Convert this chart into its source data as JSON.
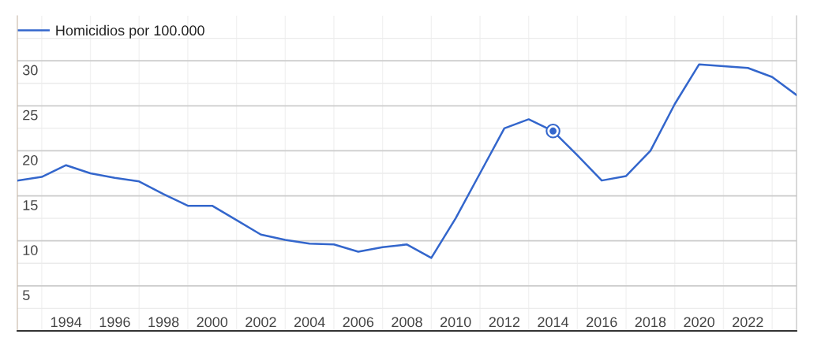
{
  "chart_data": {
    "type": "line",
    "x": [
      1992,
      1993,
      1994,
      1995,
      1996,
      1997,
      1998,
      1999,
      2000,
      2001,
      2002,
      2003,
      2004,
      2005,
      2006,
      2007,
      2008,
      2009,
      2010,
      2011,
      2012,
      2013,
      2014,
      2015,
      2016,
      2017,
      2018,
      2019,
      2020,
      2021,
      2022,
      2023,
      2024
    ],
    "series": [
      {
        "name": "Homicidios por 100.000",
        "color": "#3366cc",
        "values": [
          16.7,
          17.1,
          18.4,
          17.5,
          17.0,
          16.6,
          15.2,
          13.9,
          13.9,
          12.3,
          10.7,
          10.1,
          9.7,
          9.6,
          8.8,
          9.3,
          9.6,
          8.1,
          12.5,
          17.5,
          22.5,
          23.5,
          22.2,
          19.5,
          16.7,
          17.2,
          20.0,
          25.2,
          29.6,
          29.4,
          29.2,
          28.2,
          26.2
        ]
      },
      {
        "type": "scatter",
        "x": [
          2014
        ],
        "color": "#3366cc",
        "values": [
          22.2
        ]
      }
    ],
    "xlim": [
      1992,
      2024
    ],
    "xticks": [
      {
        "value": 1993,
        "label": null
      },
      1994,
      {
        "value": 1995,
        "label": null
      },
      1996,
      {
        "value": 1997,
        "label": null
      },
      1998,
      {
        "value": 1999,
        "label": null
      },
      2000,
      {
        "value": 2001,
        "label": null
      },
      2002,
      {
        "value": 2003,
        "label": null
      },
      2004,
      {
        "value": 2005,
        "label": null
      },
      2006,
      {
        "value": 2007,
        "label": null
      },
      2008,
      {
        "value": 2009,
        "label": null
      },
      2010,
      {
        "value": 2011,
        "label": null
      },
      2012,
      {
        "value": 2013,
        "label": null
      },
      2014,
      {
        "value": 2015,
        "label": null
      },
      2016,
      {
        "value": 2017,
        "label": null
      },
      2018,
      {
        "value": 2019,
        "label": null
      },
      2020,
      {
        "value": 2021,
        "label": null
      },
      2022,
      {
        "value": 2023,
        "label": null
      }
    ],
    "ylim": [
      0,
      35
    ],
    "yticks": [
      {
        "value": 2.5,
        "label": null
      },
      5,
      {
        "value": 7.5,
        "label": null
      },
      10,
      {
        "value": 12.5,
        "label": null
      },
      15,
      {
        "value": 17.5,
        "label": null
      },
      20,
      {
        "value": 22.5,
        "label": null
      },
      25,
      {
        "value": 27.5,
        "label": null
      },
      30,
      {
        "value": 32.5,
        "label": null
      }
    ],
    "grid": true,
    "legend": "top left",
    "line_style": "solid"
  }
}
